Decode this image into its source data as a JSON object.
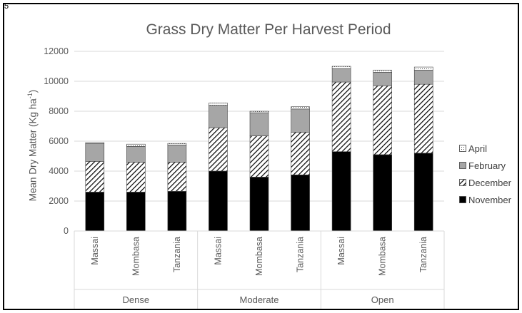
{
  "corner_mark": "5",
  "chart_data": {
    "type": "bar",
    "stacked": true,
    "title": "Grass Dry Matter Per Harvest Period",
    "ylabel": "Mean Dry Matter (Kg ha",
    "ylabel_sup": "-1",
    "ylabel_end": ")",
    "ylim": [
      0,
      12000
    ],
    "yticks": [
      0,
      2000,
      4000,
      6000,
      8000,
      10000,
      12000
    ],
    "grid": "horizontal",
    "legend_position": "right",
    "groups": [
      {
        "label": "Dense",
        "categories": [
          "Massai",
          "Mombasa",
          "Tanzania"
        ]
      },
      {
        "label": "Moderate",
        "categories": [
          "Massai",
          "Mombasa",
          "Tanzania"
        ]
      },
      {
        "label": "Open",
        "categories": [
          "Massai",
          "Mombasa",
          "Tanzania"
        ]
      }
    ],
    "series": [
      {
        "name": "November",
        "values": [
          2600,
          2600,
          2650,
          4000,
          3600,
          3750,
          5300,
          5100,
          5200
        ]
      },
      {
        "name": "December",
        "values": [
          2050,
          2000,
          1950,
          2900,
          2750,
          2850,
          4650,
          4600,
          4600
        ]
      },
      {
        "name": "February",
        "values": [
          1200,
          1050,
          1150,
          1500,
          1550,
          1550,
          900,
          900,
          950
        ]
      },
      {
        "name": "April",
        "values": [
          50,
          150,
          100,
          150,
          100,
          150,
          150,
          150,
          200
        ]
      }
    ],
    "colors": {
      "November": "#000000",
      "December": "hatch",
      "February": "#a6a6a6",
      "April": "dotted"
    },
    "legend_order": [
      "April",
      "February",
      "December",
      "November"
    ]
  }
}
